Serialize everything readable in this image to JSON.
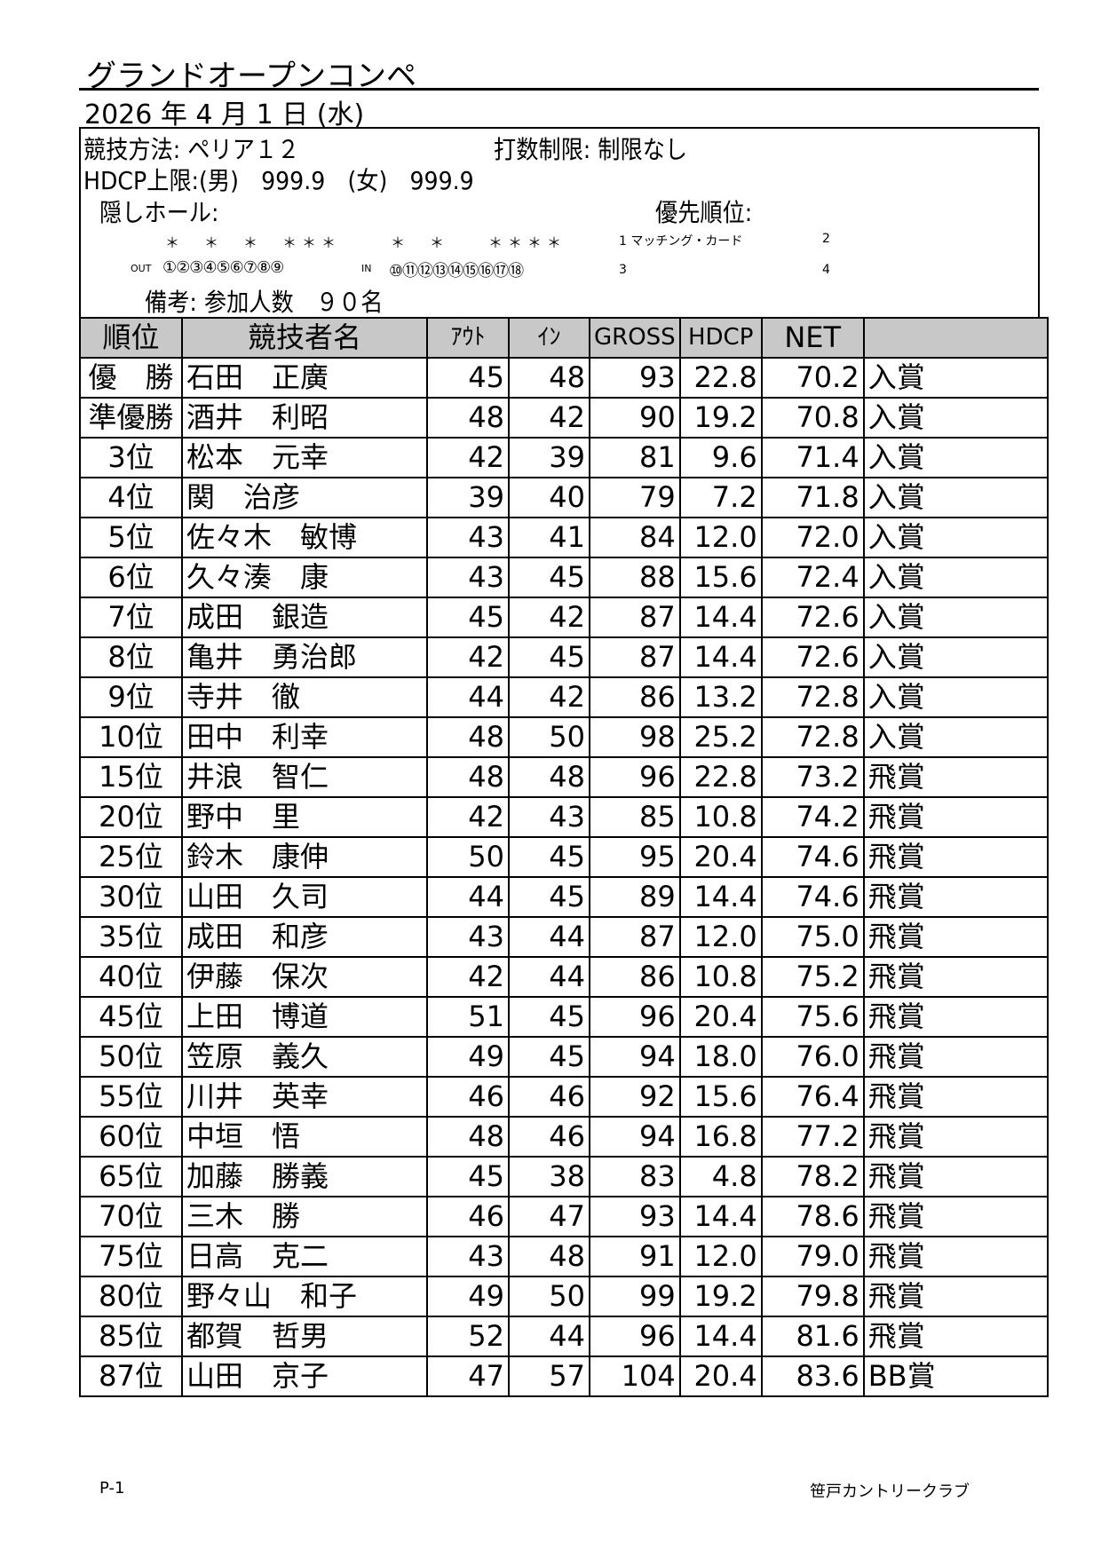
{
  "title": "グランドオープンコンペ",
  "date": "2026 年 4 月 1 日 (水)",
  "info": {
    "method": "競技方法: ペリア１２",
    "stroke_limit": "打数制限: 制限なし",
    "hdcp_limit": "HDCP上限:(男)　999.9　(女)　999.9",
    "hidden_holes": "隠しホール:",
    "priority": "優先順位:",
    "hidden_out_marks": "＊　＊　＊　＊＊＊",
    "hidden_in_marks": "＊　＊　　＊＊＊＊",
    "priority_1": "1 マッチング・カード",
    "priority_2": "2",
    "priority_3": "3",
    "priority_4": "4",
    "out_label": "OUT",
    "out_holes": "①②③④⑤⑥⑦⑧⑨",
    "in_label": "IN",
    "in_holes": "⑩⑪⑫⑬⑭⑮⑯⑰⑱",
    "remarks": "備考: 参加人数　９０名"
  },
  "table": {
    "headers": [
      "順位",
      "競技者名",
      "ｱｳﾄ",
      "ｲﾝ",
      "GROSS",
      "HDCP",
      "NET",
      ""
    ],
    "rows": [
      [
        "優　勝",
        "石田　正廣",
        "45",
        "48",
        "93",
        "22.8",
        "70.2",
        "入賞"
      ],
      [
        "準優勝",
        "酒井　利昭",
        "48",
        "42",
        "90",
        "19.2",
        "70.8",
        "入賞"
      ],
      [
        "3位",
        "松本　元幸",
        "42",
        "39",
        "81",
        "9.6",
        "71.4",
        "入賞"
      ],
      [
        "4位",
        "関　治彦",
        "39",
        "40",
        "79",
        "7.2",
        "71.8",
        "入賞"
      ],
      [
        "5位",
        "佐々木　敏博",
        "43",
        "41",
        "84",
        "12.0",
        "72.0",
        "入賞"
      ],
      [
        "6位",
        "久々湊　康",
        "43",
        "45",
        "88",
        "15.6",
        "72.4",
        "入賞"
      ],
      [
        "7位",
        "成田　銀造",
        "45",
        "42",
        "87",
        "14.4",
        "72.6",
        "入賞"
      ],
      [
        "8位",
        "亀井　勇治郎",
        "42",
        "45",
        "87",
        "14.4",
        "72.6",
        "入賞"
      ],
      [
        "9位",
        "寺井　徹",
        "44",
        "42",
        "86",
        "13.2",
        "72.8",
        "入賞"
      ],
      [
        "10位",
        "田中　利幸",
        "48",
        "50",
        "98",
        "25.2",
        "72.8",
        "入賞"
      ],
      [
        "15位",
        "井浪　智仁",
        "48",
        "48",
        "96",
        "22.8",
        "73.2",
        "飛賞"
      ],
      [
        "20位",
        "野中　里",
        "42",
        "43",
        "85",
        "10.8",
        "74.2",
        "飛賞"
      ],
      [
        "25位",
        "鈴木　康伸",
        "50",
        "45",
        "95",
        "20.4",
        "74.6",
        "飛賞"
      ],
      [
        "30位",
        "山田　久司",
        "44",
        "45",
        "89",
        "14.4",
        "74.6",
        "飛賞"
      ],
      [
        "35位",
        "成田　和彦",
        "43",
        "44",
        "87",
        "12.0",
        "75.0",
        "飛賞"
      ],
      [
        "40位",
        "伊藤　保次",
        "42",
        "44",
        "86",
        "10.8",
        "75.2",
        "飛賞"
      ],
      [
        "45位",
        "上田　博道",
        "51",
        "45",
        "96",
        "20.4",
        "75.6",
        "飛賞"
      ],
      [
        "50位",
        "笠原　義久",
        "49",
        "45",
        "94",
        "18.0",
        "76.0",
        "飛賞"
      ],
      [
        "55位",
        "川井　英幸",
        "46",
        "46",
        "92",
        "15.6",
        "76.4",
        "飛賞"
      ],
      [
        "60位",
        "中垣　悟",
        "48",
        "46",
        "94",
        "16.8",
        "77.2",
        "飛賞"
      ],
      [
        "65位",
        "加藤　勝義",
        "45",
        "38",
        "83",
        "4.8",
        "78.2",
        "飛賞"
      ],
      [
        "70位",
        "三木　勝",
        "46",
        "47",
        "93",
        "14.4",
        "78.6",
        "飛賞"
      ],
      [
        "75位",
        "日高　克二",
        "43",
        "48",
        "91",
        "12.0",
        "79.0",
        "飛賞"
      ],
      [
        "80位",
        "野々山　和子",
        "49",
        "50",
        "99",
        "19.2",
        "79.8",
        "飛賞"
      ],
      [
        "85位",
        "都賀　哲男",
        "52",
        "44",
        "96",
        "14.4",
        "81.6",
        "飛賞"
      ],
      [
        "87位",
        "山田　京子",
        "47",
        "57",
        "104",
        "20.4",
        "83.6",
        "BB賞"
      ]
    ]
  },
  "footer": {
    "page": "P-1",
    "club": "笹戸カントリークラブ"
  }
}
